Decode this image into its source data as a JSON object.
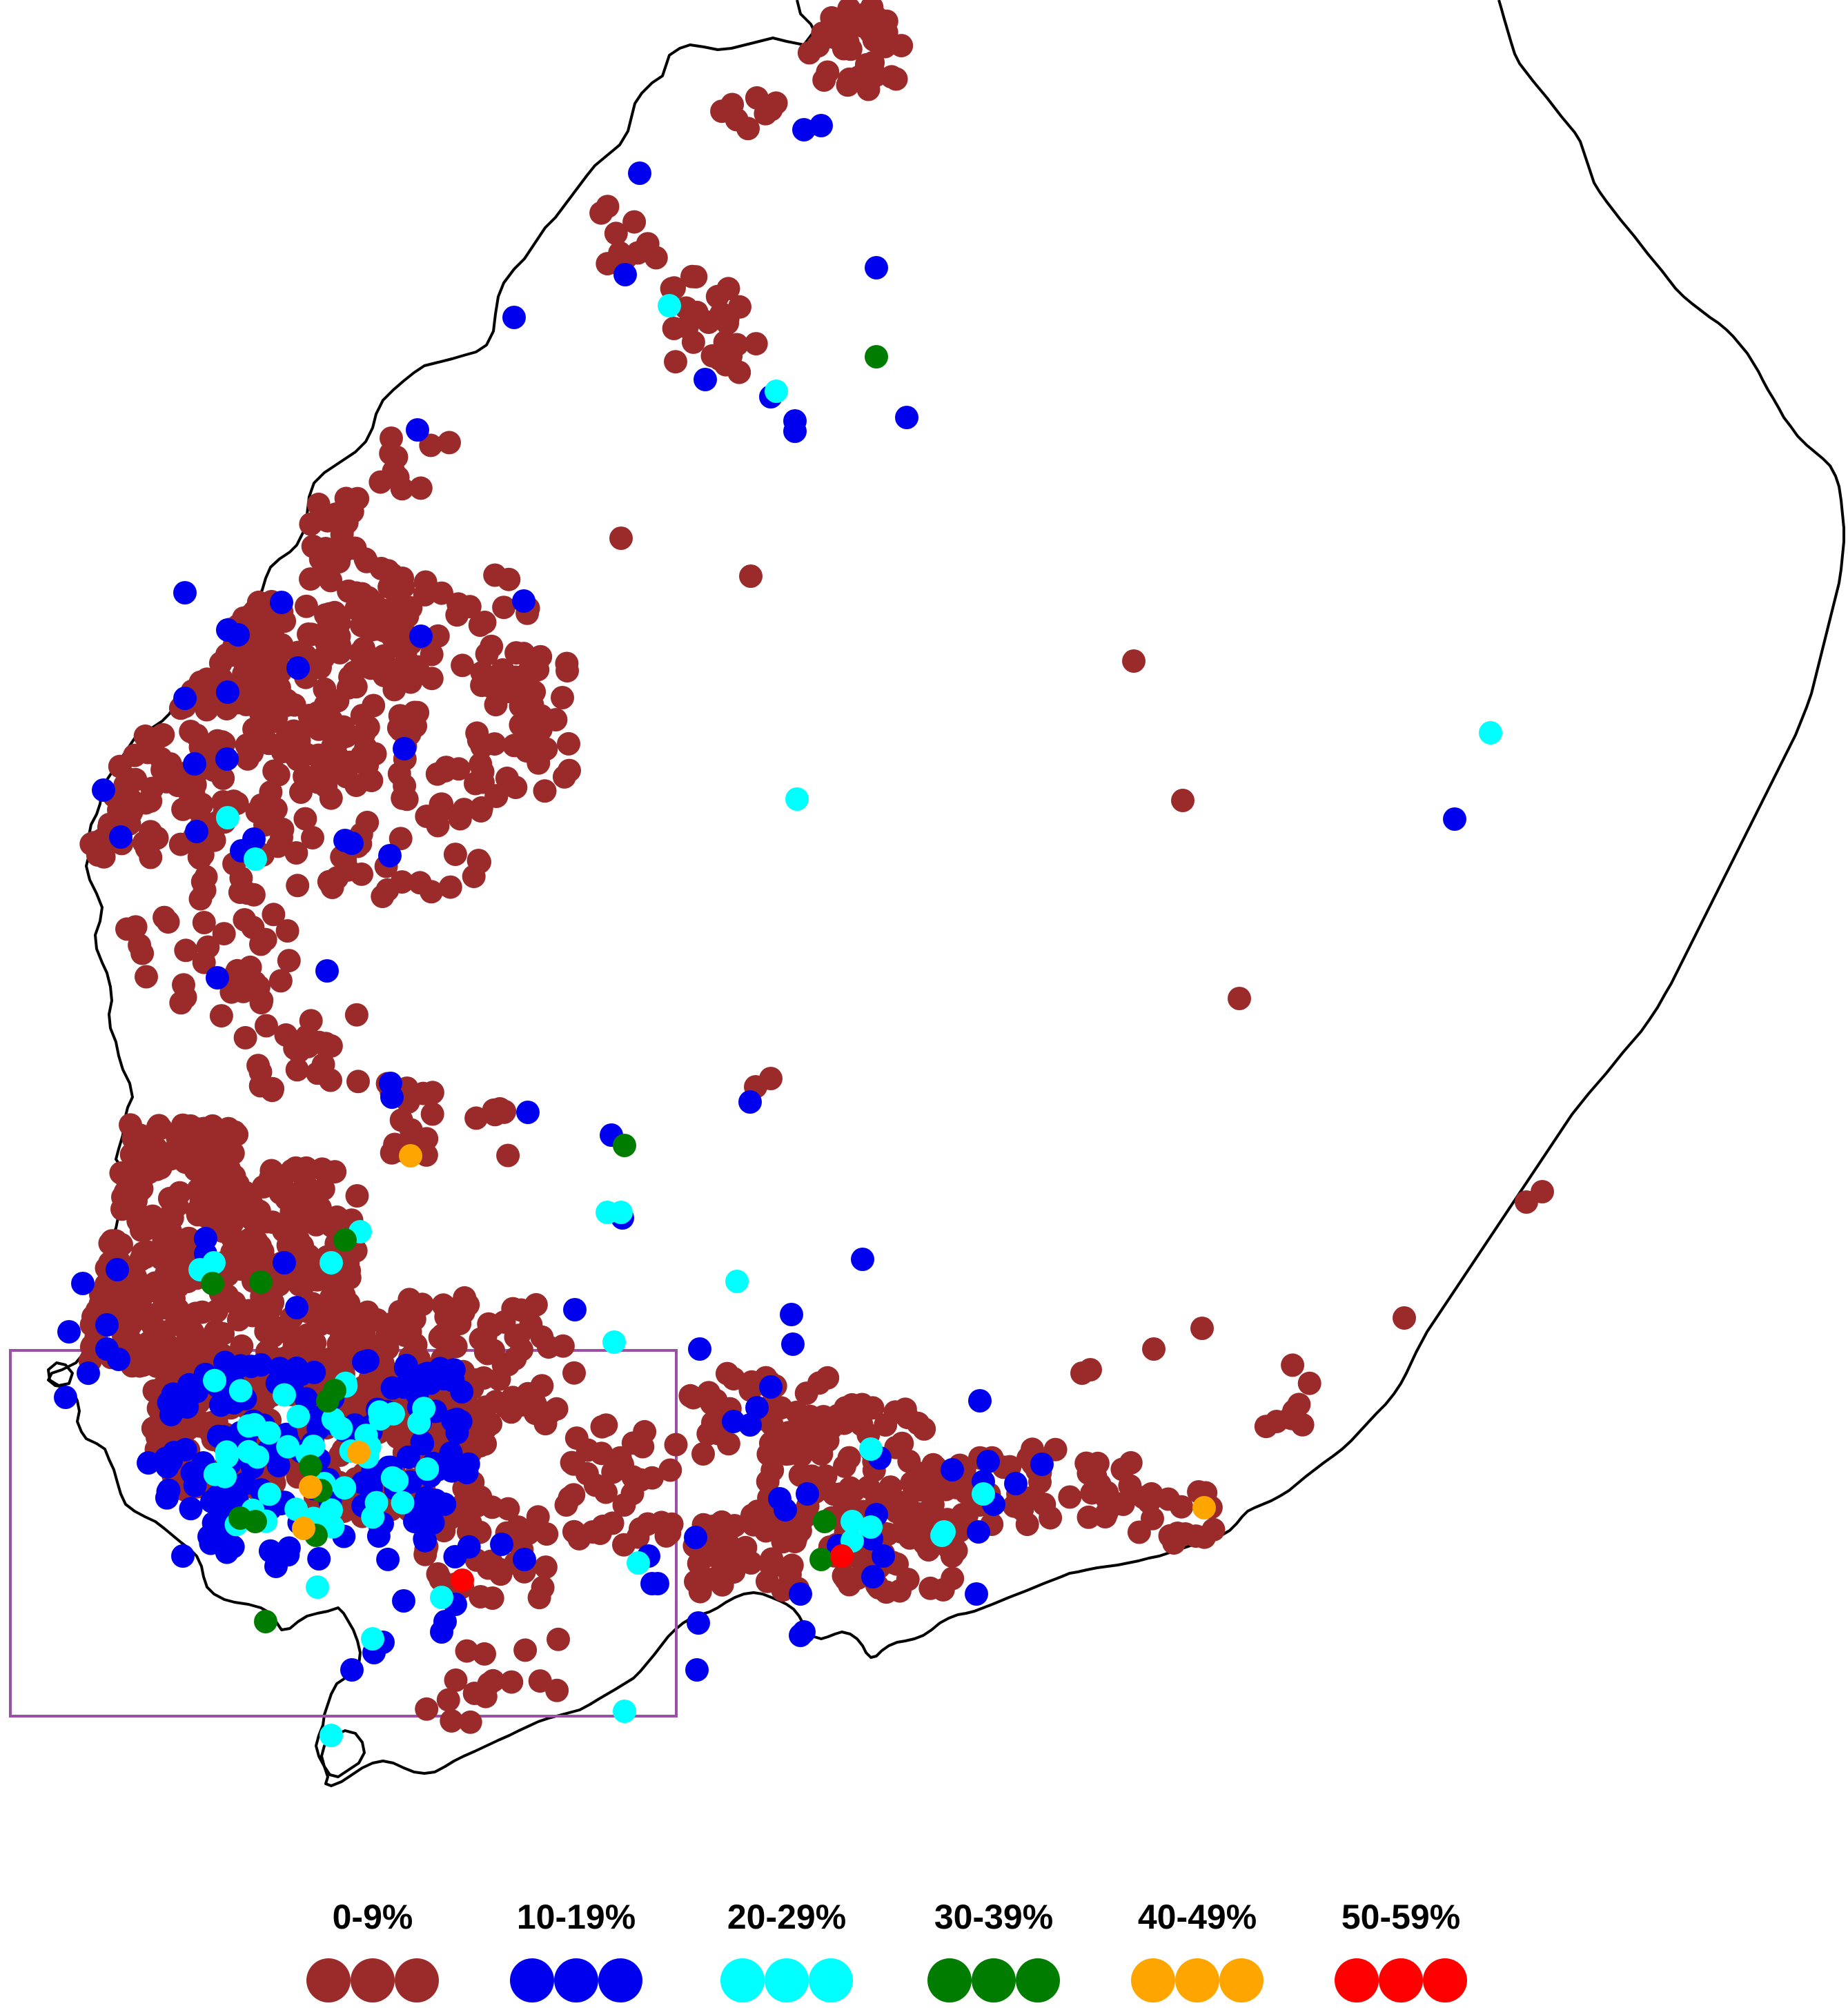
{
  "legend": {
    "items": [
      {
        "label": "0-9%",
        "color": "#9b2b2b"
      },
      {
        "label": "10-19%",
        "color": "#0000ee"
      },
      {
        "label": "20-29%",
        "color": "#00ffff"
      },
      {
        "label": "30-39%",
        "color": "#007d00"
      },
      {
        "label": "40-49%",
        "color": "#ffa500"
      },
      {
        "label": "50-59%",
        "color": "#ff0000"
      }
    ]
  },
  "highlight_box": {
    "color": "#9b4fa6"
  },
  "outline": {
    "color": "#000000"
  }
}
